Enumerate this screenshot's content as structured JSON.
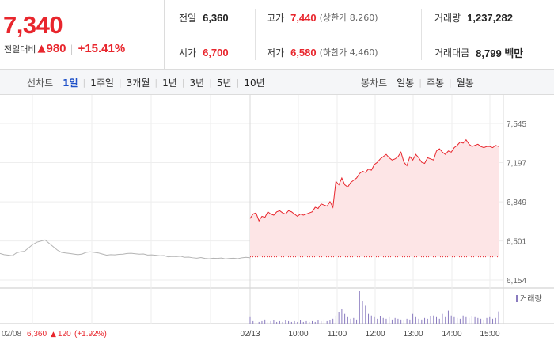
{
  "summary": {
    "price": "7,340",
    "change_label": "전일대비",
    "change_arrow": "▲",
    "change_value": "980",
    "change_pct": "+15.41%"
  },
  "stats": {
    "prev_close": {
      "label": "전일",
      "value": "6,360"
    },
    "open": {
      "label": "시가",
      "value": "6,700"
    },
    "high": {
      "label": "고가",
      "value": "7,440",
      "limit_label": "(상한가 8,260)"
    },
    "low": {
      "label": "저가",
      "value": "6,580",
      "limit_label": "(하한가 4,460)"
    },
    "volume": {
      "label": "거래량",
      "value": "1,237,282"
    },
    "turnover": {
      "label": "거래대금",
      "value": "8,799 백만"
    }
  },
  "tabs": {
    "line_title": "선차트",
    "line_items": [
      "1일",
      "1주일",
      "3개월",
      "1년",
      "3년",
      "5년",
      "10년"
    ],
    "line_active": 0,
    "candle_title": "봉차트",
    "candle_items": [
      "일봉",
      "주봉",
      "월봉"
    ]
  },
  "chart_data": {
    "type": "line",
    "y_ticks": [
      "7,545",
      "7,197",
      "6,849",
      "6,501",
      "6,154"
    ],
    "y_tick_values": [
      7545,
      7197,
      6849,
      6501,
      6154
    ],
    "ylim": [
      6154,
      7545
    ],
    "x_labels": [
      "02/13",
      "10:00",
      "11:00",
      "12:00",
      "13:00",
      "14:00",
      "15:00"
    ],
    "prev_day_label": "02/08",
    "prev_day_price": "6,360",
    "prev_day_arrow": "▲",
    "prev_day_change": "120",
    "prev_day_pct": "(+1.92%)",
    "volume_legend": "거래량",
    "prev_close_line": 6360,
    "prev_series": {
      "values": [
        6390,
        6380,
        6375,
        6370,
        6395,
        6405,
        6410,
        6440,
        6470,
        6490,
        6500,
        6510,
        6480,
        6450,
        6420,
        6400,
        6395,
        6390,
        6385,
        6380,
        6385,
        6400,
        6405,
        6400,
        6395,
        6385,
        6375,
        6380,
        6378,
        6382,
        6384,
        6390,
        6392,
        6388,
        6384,
        6386,
        6376,
        6378,
        6374,
        6370,
        6372,
        6360,
        6364,
        6362,
        6366,
        6356,
        6358,
        6352,
        6348,
        6354,
        6346,
        6343,
        6348,
        6346,
        6350,
        6342,
        6346,
        6348,
        6344,
        6352,
        6356,
        6352
      ]
    },
    "today_series": {
      "values": [
        6700,
        6740,
        6750,
        6680,
        6720,
        6710,
        6760,
        6740,
        6730,
        6760,
        6770,
        6750,
        6740,
        6770,
        6760,
        6740,
        6720,
        6740,
        6730,
        6740,
        6750,
        6760,
        6800,
        6790,
        6830,
        6820,
        6810,
        6850,
        6800,
        7030,
        7000,
        7060,
        7000,
        6980,
        7020,
        7040,
        7060,
        7100,
        7120,
        7110,
        7140,
        7130,
        7180,
        7200,
        7230,
        7250,
        7270,
        7240,
        7220,
        7230,
        7250,
        7290,
        7200,
        7170,
        7250,
        7220,
        7270,
        7240,
        7200,
        7190,
        7240,
        7230,
        7220,
        7300,
        7320,
        7290,
        7270,
        7300,
        7290,
        7330,
        7350,
        7380,
        7370,
        7400,
        7360,
        7340,
        7350,
        7360,
        7340,
        7330,
        7340,
        7340,
        7330,
        7350,
        7340
      ]
    },
    "volume_bars": [
      8,
      3,
      4,
      2,
      3,
      5,
      2,
      3,
      4,
      2,
      3,
      2,
      4,
      3,
      2,
      3,
      2,
      4,
      2,
      3,
      2,
      3,
      2,
      4,
      3,
      5,
      3,
      4,
      6,
      10,
      14,
      18,
      12,
      8,
      6,
      7,
      5,
      40,
      28,
      22,
      12,
      10,
      8,
      6,
      9,
      7,
      6,
      8,
      5,
      7,
      6,
      5,
      4,
      6,
      5,
      12,
      8,
      6,
      5,
      7,
      6,
      9,
      10,
      8,
      6,
      12,
      8,
      16,
      10,
      8,
      7,
      6,
      10,
      8,
      7,
      9,
      8,
      7,
      6,
      5,
      7,
      8,
      6,
      7,
      15
    ]
  }
}
